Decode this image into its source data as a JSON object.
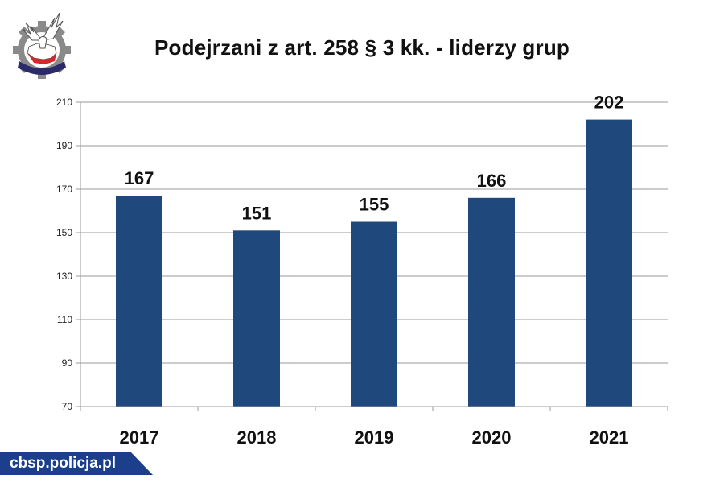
{
  "chart_data": {
    "type": "bar",
    "title": "Podejrzani z art. 258 § 3 kk. - liderzy grup",
    "categories": [
      "2017",
      "2018",
      "2019",
      "2020",
      "2021"
    ],
    "values": [
      167,
      151,
      155,
      166,
      202
    ],
    "data_labels": [
      "167",
      "151",
      "155",
      "166",
      "202"
    ],
    "ylim": [
      70,
      210
    ],
    "yticks": [
      70,
      90,
      110,
      130,
      150,
      170,
      190,
      210
    ],
    "grid": true,
    "legend": "none",
    "bar_color": "#1F497D"
  },
  "footer": {
    "site": "cbsp.policja.pl",
    "badge_color": "#1B3F8B"
  },
  "logo": {
    "icon": "cbsp-eagle-emblem-icon"
  }
}
